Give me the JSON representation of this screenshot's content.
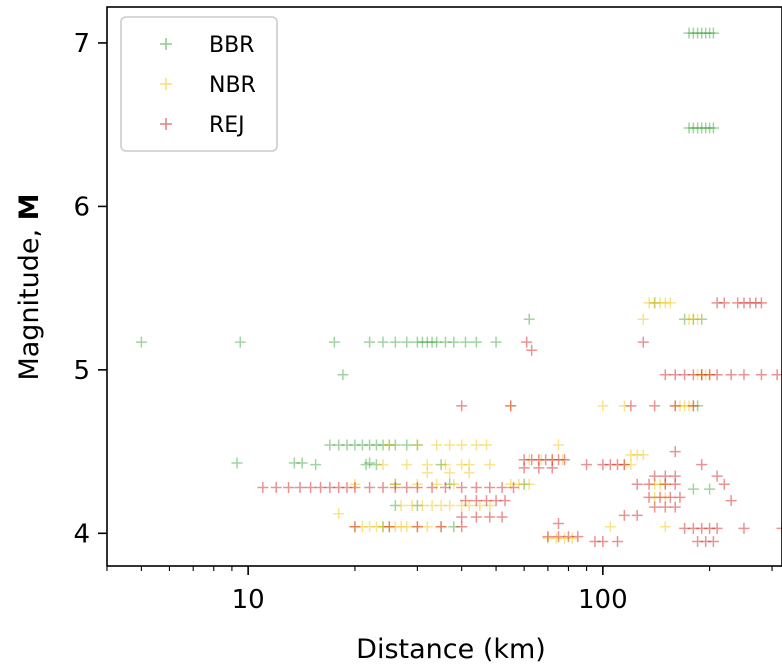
{
  "chart_data": {
    "type": "scatter",
    "xlabel": "Distance (km)",
    "ylabel_prefix": "Magnitude, ",
    "ylabel_bold": "M",
    "xscale": "log",
    "xlim": [
      4,
      320
    ],
    "ylim": [
      3.8,
      7.22
    ],
    "xticks": [
      {
        "value": 10,
        "label": "10"
      },
      {
        "value": 100,
        "label": "100"
      }
    ],
    "yticks": [
      {
        "value": 4,
        "label": "4"
      },
      {
        "value": 5,
        "label": "5"
      },
      {
        "value": 6,
        "label": "6"
      },
      {
        "value": 7,
        "label": "7"
      }
    ],
    "grid": false,
    "legend_position": "top-left",
    "series": [
      {
        "name": "BBR",
        "color": "#2ca02c",
        "alpha": 0.45,
        "points": [
          [
            5,
            5.17
          ],
          [
            9.5,
            5.17
          ],
          [
            17.5,
            5.17
          ],
          [
            18.5,
            4.97
          ],
          [
            9.3,
            4.43
          ],
          [
            13.5,
            4.43
          ],
          [
            14.2,
            4.43
          ],
          [
            15.5,
            4.42
          ],
          [
            22,
            4.43
          ],
          [
            23,
            4.42
          ],
          [
            21.5,
            4.42
          ],
          [
            26,
            4.3
          ],
          [
            35,
            4.42
          ],
          [
            37,
            4.3
          ],
          [
            62,
            5.31
          ],
          [
            22,
            5.17
          ],
          [
            24,
            5.17
          ],
          [
            26,
            5.17
          ],
          [
            28,
            5.17
          ],
          [
            30,
            5.17
          ],
          [
            31,
            5.17
          ],
          [
            32,
            5.17
          ],
          [
            33,
            5.17
          ],
          [
            34,
            5.17
          ],
          [
            36,
            5.17
          ],
          [
            38,
            5.17
          ],
          [
            41,
            5.17
          ],
          [
            44,
            5.17
          ],
          [
            50,
            5.17
          ],
          [
            17,
            4.54
          ],
          [
            18,
            4.54
          ],
          [
            19,
            4.54
          ],
          [
            20,
            4.54
          ],
          [
            21,
            4.54
          ],
          [
            22,
            4.54
          ],
          [
            23,
            4.54
          ],
          [
            24,
            4.54
          ],
          [
            25,
            4.54
          ],
          [
            26,
            4.54
          ],
          [
            28,
            4.54
          ],
          [
            30,
            4.54
          ],
          [
            175,
            7.06
          ],
          [
            180,
            7.06
          ],
          [
            185,
            7.06
          ],
          [
            190,
            7.06
          ],
          [
            195,
            7.06
          ],
          [
            200,
            7.06
          ],
          [
            205,
            7.06
          ],
          [
            175,
            6.48
          ],
          [
            180,
            6.48
          ],
          [
            185,
            6.48
          ],
          [
            190,
            6.48
          ],
          [
            195,
            6.48
          ],
          [
            200,
            6.48
          ],
          [
            205,
            6.48
          ],
          [
            170,
            5.31
          ],
          [
            180,
            5.31
          ],
          [
            190,
            5.31
          ],
          [
            185,
            4.78
          ],
          [
            190,
            4.97
          ],
          [
            140,
            5.41
          ],
          [
            180,
            4.27
          ],
          [
            200,
            4.27
          ],
          [
            60,
            4.3
          ],
          [
            26,
            4.17
          ],
          [
            30,
            4.17
          ],
          [
            24,
            4.04
          ],
          [
            38,
            4.04
          ]
        ]
      },
      {
        "name": "NBR",
        "color": "#f2c200",
        "alpha": 0.45,
        "points": [
          [
            20,
            4.04
          ],
          [
            21,
            4.04
          ],
          [
            22,
            4.04
          ],
          [
            23,
            4.04
          ],
          [
            24,
            4.04
          ],
          [
            25,
            4.04
          ],
          [
            26,
            4.04
          ],
          [
            27,
            4.04
          ],
          [
            28,
            4.04
          ],
          [
            30,
            4.04
          ],
          [
            32,
            4.04
          ],
          [
            35,
            4.04
          ],
          [
            27,
            4.17
          ],
          [
            29,
            4.17
          ],
          [
            31,
            4.17
          ],
          [
            33,
            4.17
          ],
          [
            35,
            4.17
          ],
          [
            37,
            4.17
          ],
          [
            40,
            4.17
          ],
          [
            42,
            4.17
          ],
          [
            45,
            4.17
          ],
          [
            48,
            4.17
          ],
          [
            26,
            4.3
          ],
          [
            30,
            4.3
          ],
          [
            34,
            4.3
          ],
          [
            38,
            4.3
          ],
          [
            55,
            4.3
          ],
          [
            58,
            4.3
          ],
          [
            62,
            4.3
          ],
          [
            24,
            4.42
          ],
          [
            28,
            4.42
          ],
          [
            32,
            4.42
          ],
          [
            36,
            4.42
          ],
          [
            42,
            4.42
          ],
          [
            48,
            4.42
          ],
          [
            25,
            4.54
          ],
          [
            30,
            4.54
          ],
          [
            34,
            4.54
          ],
          [
            37,
            4.54
          ],
          [
            40,
            4.54
          ],
          [
            44,
            4.54
          ],
          [
            47,
            4.54
          ],
          [
            32,
            4.37
          ],
          [
            37,
            4.37
          ],
          [
            42,
            4.37
          ],
          [
            62,
            4.45
          ],
          [
            67,
            4.45
          ],
          [
            72,
            4.45
          ],
          [
            77,
            4.45
          ],
          [
            70,
            3.97
          ],
          [
            74,
            3.97
          ],
          [
            78,
            3.97
          ],
          [
            82,
            3.97
          ],
          [
            120,
            4.48
          ],
          [
            125,
            4.48
          ],
          [
            130,
            4.48
          ],
          [
            140,
            4.3
          ],
          [
            145,
            4.3
          ],
          [
            150,
            4.3
          ],
          [
            140,
            4.22
          ],
          [
            150,
            4.22
          ],
          [
            115,
            4.42
          ],
          [
            120,
            4.42
          ],
          [
            135,
            5.41
          ],
          [
            140,
            5.41
          ],
          [
            145,
            5.41
          ],
          [
            150,
            5.41
          ],
          [
            155,
            5.41
          ],
          [
            175,
            5.31
          ],
          [
            180,
            5.31
          ],
          [
            185,
            5.31
          ],
          [
            160,
            4.78
          ],
          [
            165,
            4.78
          ],
          [
            170,
            4.78
          ],
          [
            175,
            4.78
          ],
          [
            180,
            4.78
          ],
          [
            185,
            4.97
          ],
          [
            190,
            4.97
          ],
          [
            195,
            4.97
          ],
          [
            200,
            4.97
          ],
          [
            55,
            4.78
          ],
          [
            100,
            4.78
          ],
          [
            115,
            4.78
          ],
          [
            130,
            5.31
          ],
          [
            105,
            4.04
          ],
          [
            150,
            4.04
          ],
          [
            18,
            4.12
          ],
          [
            20,
            4.3
          ],
          [
            40,
            4.42
          ],
          [
            75,
            4.54
          ]
        ]
      },
      {
        "name": "REJ",
        "color": "#d62728",
        "alpha": 0.5,
        "points": [
          [
            11,
            4.28
          ],
          [
            12,
            4.28
          ],
          [
            13,
            4.28
          ],
          [
            14,
            4.28
          ],
          [
            15,
            4.28
          ],
          [
            16,
            4.28
          ],
          [
            17,
            4.28
          ],
          [
            18,
            4.28
          ],
          [
            19,
            4.28
          ],
          [
            20,
            4.28
          ],
          [
            22,
            4.28
          ],
          [
            24,
            4.28
          ],
          [
            26,
            4.28
          ],
          [
            28,
            4.28
          ],
          [
            30,
            4.28
          ],
          [
            33,
            4.28
          ],
          [
            36,
            4.28
          ],
          [
            40,
            4.28
          ],
          [
            44,
            4.28
          ],
          [
            48,
            4.28
          ],
          [
            52,
            4.28
          ],
          [
            56,
            4.28
          ],
          [
            41,
            4.2
          ],
          [
            44,
            4.2
          ],
          [
            47,
            4.2
          ],
          [
            50,
            4.2
          ],
          [
            53,
            4.2
          ],
          [
            40,
            4.1
          ],
          [
            44,
            4.1
          ],
          [
            48,
            4.1
          ],
          [
            52,
            4.1
          ],
          [
            20,
            4.04
          ],
          [
            25,
            4.04
          ],
          [
            30,
            4.04
          ],
          [
            35,
            4.04
          ],
          [
            40,
            4.04
          ],
          [
            60,
            4.45
          ],
          [
            63,
            4.45
          ],
          [
            66,
            4.45
          ],
          [
            69,
            4.45
          ],
          [
            72,
            4.45
          ],
          [
            75,
            4.45
          ],
          [
            78,
            4.45
          ],
          [
            60,
            4.4
          ],
          [
            66,
            4.4
          ],
          [
            72,
            4.4
          ],
          [
            55,
            4.78
          ],
          [
            40,
            4.78
          ],
          [
            61,
            5.17
          ],
          [
            63,
            5.12
          ],
          [
            70,
            3.98
          ],
          [
            75,
            3.98
          ],
          [
            80,
            3.98
          ],
          [
            85,
            3.98
          ],
          [
            95,
            3.95
          ],
          [
            100,
            3.95
          ],
          [
            90,
            4.42
          ],
          [
            100,
            4.42
          ],
          [
            105,
            4.42
          ],
          [
            110,
            4.42
          ],
          [
            115,
            4.42
          ],
          [
            125,
            4.3
          ],
          [
            135,
            4.3
          ],
          [
            150,
            4.3
          ],
          [
            160,
            4.3
          ],
          [
            135,
            4.22
          ],
          [
            145,
            4.22
          ],
          [
            155,
            4.22
          ],
          [
            165,
            4.22
          ],
          [
            140,
            4.35
          ],
          [
            150,
            4.35
          ],
          [
            160,
            4.35
          ],
          [
            140,
            4.16
          ],
          [
            150,
            4.16
          ],
          [
            160,
            4.16
          ],
          [
            170,
            4.03
          ],
          [
            180,
            4.03
          ],
          [
            190,
            4.03
          ],
          [
            200,
            4.03
          ],
          [
            210,
            4.03
          ],
          [
            185,
            3.95
          ],
          [
            195,
            3.95
          ],
          [
            205,
            3.95
          ],
          [
            150,
            4.97
          ],
          [
            160,
            4.97
          ],
          [
            170,
            4.97
          ],
          [
            180,
            4.97
          ],
          [
            190,
            4.97
          ],
          [
            200,
            4.97
          ],
          [
            210,
            4.97
          ],
          [
            230,
            4.97
          ],
          [
            250,
            4.97
          ],
          [
            280,
            4.97
          ],
          [
            310,
            4.97
          ],
          [
            210,
            5.41
          ],
          [
            220,
            5.41
          ],
          [
            240,
            5.41
          ],
          [
            250,
            5.41
          ],
          [
            260,
            5.41
          ],
          [
            270,
            5.41
          ],
          [
            280,
            5.41
          ],
          [
            140,
            4.78
          ],
          [
            160,
            4.78
          ],
          [
            180,
            4.78
          ],
          [
            120,
            4.78
          ],
          [
            130,
            5.17
          ],
          [
            115,
            4.11
          ],
          [
            125,
            4.11
          ],
          [
            230,
            4.2
          ],
          [
            220,
            4.3
          ],
          [
            210,
            4.35
          ],
          [
            190,
            4.42
          ],
          [
            320,
            4.03
          ],
          [
            250,
            4.03
          ],
          [
            160,
            4.5
          ],
          [
            110,
            3.95
          ],
          [
            75,
            4.06
          ]
        ]
      }
    ]
  }
}
